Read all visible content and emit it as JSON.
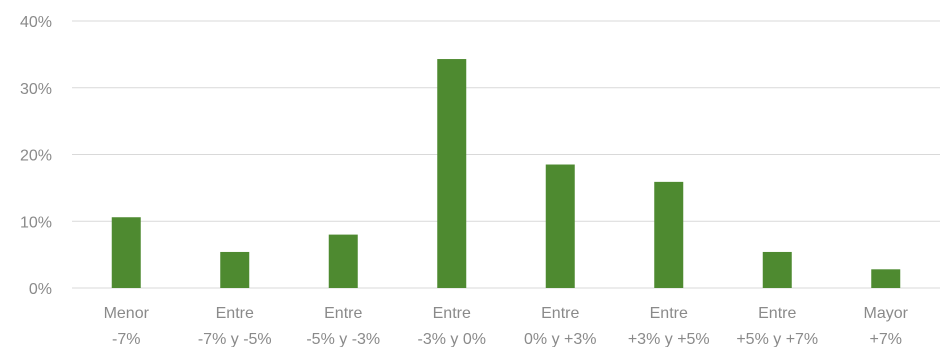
{
  "chart_data": {
    "type": "bar",
    "categories": [
      [
        "Menor",
        "-7%"
      ],
      [
        "Entre",
        "-7% y -5%"
      ],
      [
        "Entre",
        "-5% y -3%"
      ],
      [
        "Entre",
        "-3% y 0%"
      ],
      [
        "Entre",
        "0% y +3%"
      ],
      [
        "Entre",
        "+3% y +5%"
      ],
      [
        "Entre",
        "+5% y +7%"
      ],
      [
        "Mayor",
        "+7%"
      ]
    ],
    "values": [
      10.6,
      5.4,
      8.0,
      34.3,
      18.5,
      15.9,
      5.4,
      2.8
    ],
    "ylim": [
      0,
      40
    ],
    "yticks": [
      0,
      10,
      20,
      30,
      40
    ],
    "ytick_labels": [
      "0%",
      "10%",
      "20%",
      "30%",
      "40%"
    ],
    "grid": true,
    "title": "",
    "xlabel": "",
    "ylabel": "",
    "colors": {
      "bar": "#4e8a30",
      "grid": "#d9d9d9",
      "text": "#8a8a8a"
    }
  }
}
